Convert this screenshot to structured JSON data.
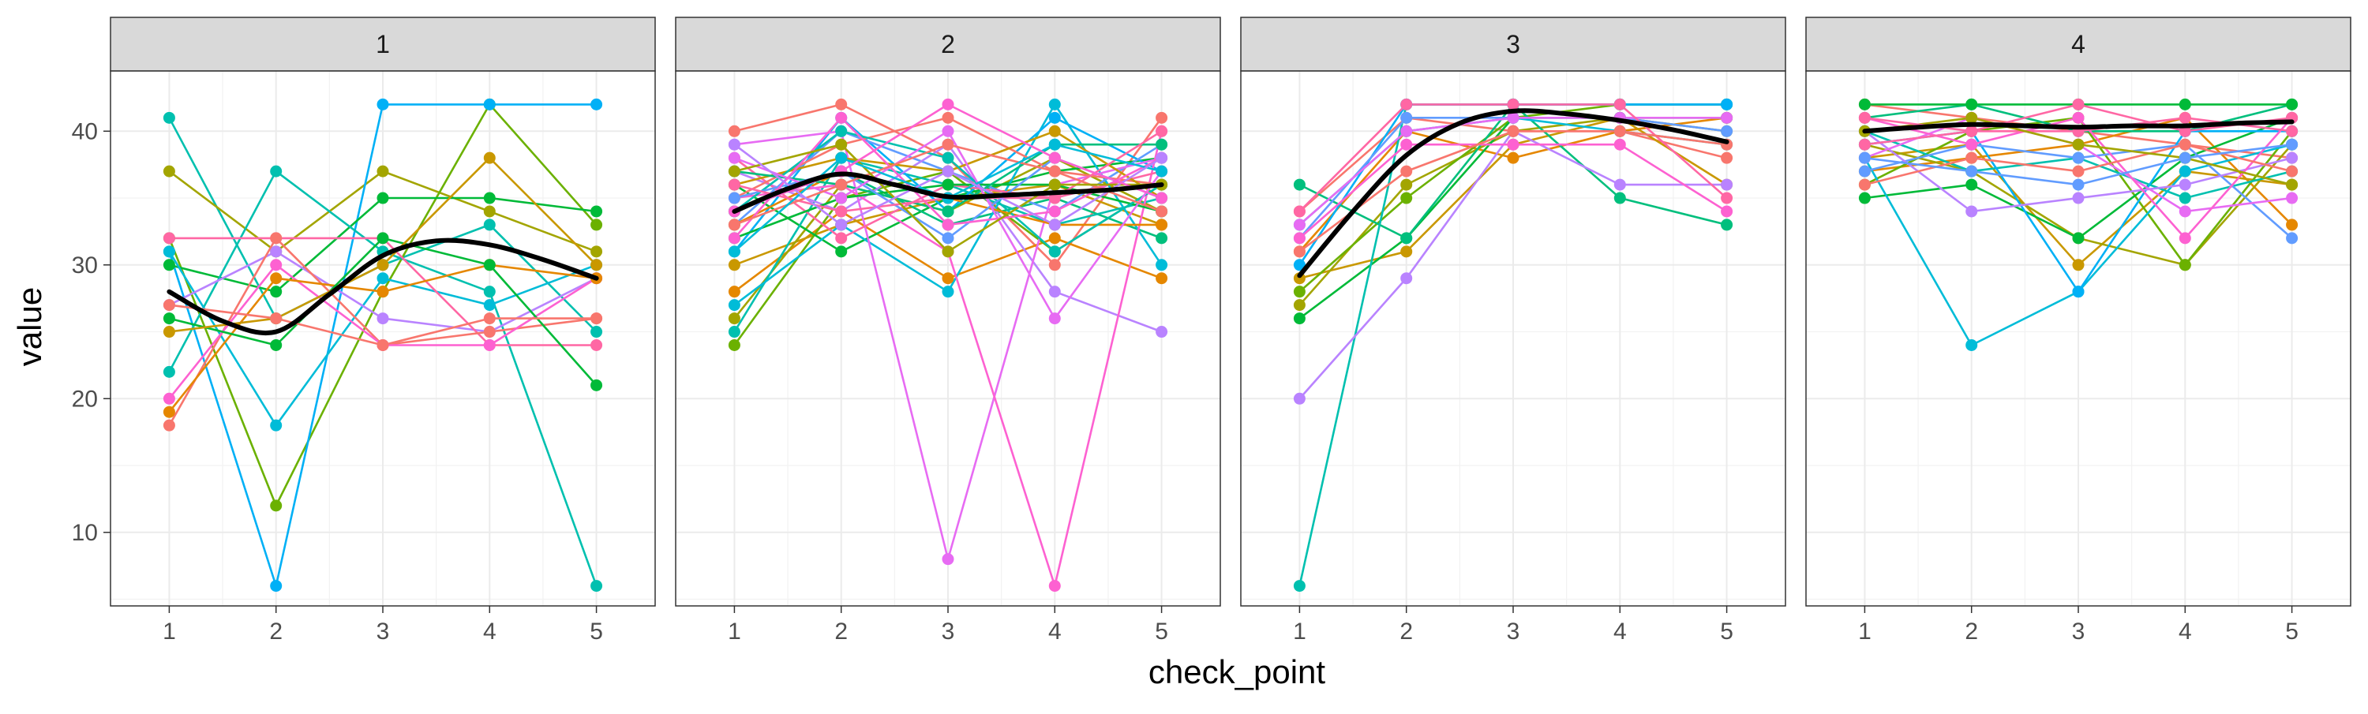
{
  "chart_data": {
    "type": "line",
    "xlabel": "check_point",
    "ylabel": "value",
    "x_ticks": [
      1,
      2,
      3,
      4,
      5
    ],
    "y_ticks": [
      10,
      20,
      30,
      40
    ],
    "ylim": [
      4.5,
      44.5
    ],
    "xlim": [
      0.45,
      5.55
    ],
    "grid": true,
    "legend": "none",
    "smooth_color": "#000000",
    "palette": [
      "#F8766D",
      "#E58700",
      "#C99800",
      "#A3A500",
      "#6BB100",
      "#00BA38",
      "#00BF7D",
      "#00C0AF",
      "#00BCD8",
      "#00B0F6",
      "#619CFF",
      "#B983FF",
      "#E76BF3",
      "#FD61D1",
      "#FF67A4"
    ],
    "panels": [
      {
        "label": "1",
        "series": [
          {
            "color": "#00C0AF",
            "values": [
              41,
              26,
              30,
              33,
              25
            ]
          },
          {
            "color": "#A3A500",
            "values": [
              37,
              31,
              37,
              34,
              31
            ]
          },
          {
            "color": "#6BB100",
            "values": [
              32,
              12,
              28,
              42,
              33
            ]
          },
          {
            "color": "#00B0F6",
            "values": [
              31,
              6,
              42,
              42,
              42
            ]
          },
          {
            "color": "#00BA38",
            "values": [
              30,
              28,
              35,
              35,
              34
            ]
          },
          {
            "color": "#00C0AF",
            "values": [
              22,
              37,
              31,
              28,
              6
            ]
          },
          {
            "color": "#00BCD8",
            "values": [
              31,
              18,
              29,
              27,
              30
            ]
          },
          {
            "color": "#B983FF",
            "values": [
              27,
              31,
              26,
              25,
              29
            ]
          },
          {
            "color": "#FF67A4",
            "values": [
              32,
              32,
              32,
              24,
              24
            ]
          },
          {
            "color": "#F8766D",
            "values": [
              18,
              32,
              24,
              25,
              26
            ]
          },
          {
            "color": "#FD61D1",
            "values": [
              20,
              30,
              24,
              24,
              29
            ]
          },
          {
            "color": "#E58700",
            "values": [
              19,
              29,
              28,
              30,
              29
            ]
          },
          {
            "color": "#00BA38",
            "values": [
              26,
              24,
              32,
              30,
              21
            ]
          },
          {
            "color": "#C99800",
            "values": [
              25,
              26,
              30,
              38,
              30
            ]
          },
          {
            "color": "#F8766D",
            "values": [
              27,
              26,
              24,
              26,
              26
            ]
          }
        ],
        "smooth": [
          [
            1,
            28.0
          ],
          [
            1.5,
            25.8
          ],
          [
            2,
            25.0
          ],
          [
            2.5,
            27.8
          ],
          [
            3,
            30.7
          ],
          [
            3.5,
            31.8
          ],
          [
            4,
            31.5
          ],
          [
            4.5,
            30.4
          ],
          [
            5,
            29.0
          ]
        ]
      },
      {
        "label": "2",
        "series": [
          {
            "color": "#F8766D",
            "values": [
              40,
              42,
              38,
              30,
              41
            ]
          },
          {
            "color": "#E58700",
            "values": [
              28,
              34,
              29,
              32,
              29
            ]
          },
          {
            "color": "#C99800",
            "values": [
              30,
              33,
              35,
              36,
              33
            ]
          },
          {
            "color": "#A3A500",
            "values": [
              26,
              36,
              34,
              38,
              34
            ]
          },
          {
            "color": "#6BB100",
            "values": [
              24,
              35,
              37,
              31,
              36
            ]
          },
          {
            "color": "#00BA38",
            "values": [
              36,
              31,
              35,
              37,
              38
            ]
          },
          {
            "color": "#00BF7D",
            "values": [
              34,
              37,
              33,
              35,
              32
            ]
          },
          {
            "color": "#00C0AF",
            "values": [
              25,
              38,
              36,
              33,
              35
            ]
          },
          {
            "color": "#00BCD8",
            "values": [
              27,
              33,
              28,
              42,
              30
            ]
          },
          {
            "color": "#00B0F6",
            "values": [
              31,
              41,
              34,
              41,
              37
            ]
          },
          {
            "color": "#619CFF",
            "values": [
              33,
              40,
              37,
              34,
              39
            ]
          },
          {
            "color": "#B983FF",
            "values": [
              37,
              34,
              39,
              28,
              25
            ]
          },
          {
            "color": "#E76BF3",
            "values": [
              39,
              40,
              8,
              36,
              38
            ]
          },
          {
            "color": "#FD61D1",
            "values": [
              35,
              36,
              31,
              6,
              40
            ]
          },
          {
            "color": "#FF67A4",
            "values": [
              38,
              32,
              36,
              35,
              37
            ]
          },
          {
            "color": "#F8766D",
            "values": [
              35,
              39,
              41,
              37,
              36
            ]
          },
          {
            "color": "#E58700",
            "values": [
              33,
              37,
              35,
              33,
              33
            ]
          },
          {
            "color": "#C99800",
            "values": [
              36,
              38,
              37,
              40,
              35
            ]
          },
          {
            "color": "#00BA38",
            "values": [
              32,
              35,
              36,
              36,
              34
            ]
          },
          {
            "color": "#00BF7D",
            "values": [
              37,
              36,
              34,
              39,
              39
            ]
          },
          {
            "color": "#00C0AF",
            "values": [
              34,
              40,
              38,
              31,
              36
            ]
          },
          {
            "color": "#619CFF",
            "values": [
              35,
              37,
              32,
              38,
              35
            ]
          },
          {
            "color": "#E76BF3",
            "values": [
              38,
              35,
              40,
              26,
              37
            ]
          },
          {
            "color": "#FD61D1",
            "values": [
              32,
              41,
              33,
              34,
              38
            ]
          },
          {
            "color": "#FF67A4",
            "values": [
              36,
              34,
              35,
              35,
              40
            ]
          },
          {
            "color": "#F8766D",
            "values": [
              33,
              36,
              39,
              37,
              34
            ]
          },
          {
            "color": "#A3A500",
            "values": [
              37,
              39,
              31,
              36,
              36
            ]
          },
          {
            "color": "#00BCD8",
            "values": [
              31,
              38,
              35,
              39,
              37
            ]
          },
          {
            "color": "#B983FF",
            "values": [
              39,
              33,
              37,
              33,
              38
            ]
          },
          {
            "color": "#FD61D1",
            "values": [
              34,
              37,
              42,
              38,
              35
            ]
          }
        ],
        "smooth": [
          [
            1,
            34.0
          ],
          [
            1.5,
            35.7
          ],
          [
            2,
            36.8
          ],
          [
            2.5,
            36.0
          ],
          [
            3,
            35.1
          ],
          [
            3.5,
            35.2
          ],
          [
            4,
            35.4
          ],
          [
            4.5,
            35.6
          ],
          [
            5,
            36.0
          ]
        ]
      },
      {
        "label": "3",
        "series": [
          {
            "color": "#F8766D",
            "values": [
              34,
              41,
              40,
              40,
              38
            ]
          },
          {
            "color": "#E58700",
            "values": [
              31,
              40,
              38,
              40,
              41
            ]
          },
          {
            "color": "#C99800",
            "values": [
              29,
              31,
              39,
              41,
              36
            ]
          },
          {
            "color": "#A3A500",
            "values": [
              27,
              36,
              40,
              41,
              40
            ]
          },
          {
            "color": "#6BB100",
            "values": [
              28,
              35,
              41,
              42,
              42
            ]
          },
          {
            "color": "#00BA38",
            "values": [
              26,
              32,
              41,
              41,
              41
            ]
          },
          {
            "color": "#00BF7D",
            "values": [
              36,
              32,
              42,
              35,
              33
            ]
          },
          {
            "color": "#00C0AF",
            "values": [
              6,
              42,
              42,
              42,
              42
            ]
          },
          {
            "color": "#00BCD8",
            "values": [
              33,
              40,
              41,
              40,
              39
            ]
          },
          {
            "color": "#00B0F6",
            "values": [
              30,
              42,
              42,
              42,
              42
            ]
          },
          {
            "color": "#619CFF",
            "values": [
              32,
              41,
              41,
              41,
              40
            ]
          },
          {
            "color": "#B983FF",
            "values": [
              20,
              29,
              40,
              36,
              36
            ]
          },
          {
            "color": "#E76BF3",
            "values": [
              33,
              40,
              41,
              41,
              41
            ]
          },
          {
            "color": "#FD61D1",
            "values": [
              32,
              39,
              39,
              39,
              34
            ]
          },
          {
            "color": "#FF67A4",
            "values": [
              34,
              42,
              42,
              42,
              35
            ]
          },
          {
            "color": "#F8766D",
            "values": [
              31,
              37,
              40,
              40,
              39
            ]
          }
        ],
        "smooth": [
          [
            1,
            29.2
          ],
          [
            1.5,
            34.0
          ],
          [
            2,
            38.2
          ],
          [
            2.5,
            40.6
          ],
          [
            3,
            41.5
          ],
          [
            3.5,
            41.3
          ],
          [
            4,
            40.8
          ],
          [
            4.5,
            40.1
          ],
          [
            5,
            39.2
          ]
        ]
      },
      {
        "label": "4",
        "series": [
          {
            "color": "#F8766D",
            "values": [
              42,
              41,
              40,
              39,
              38
            ]
          },
          {
            "color": "#E58700",
            "values": [
              37,
              38,
              39,
              41,
              33
            ]
          },
          {
            "color": "#C99800",
            "values": [
              38,
              39,
              30,
              37,
              36
            ]
          },
          {
            "color": "#A3A500",
            "values": [
              39,
              37,
              32,
              30,
              39
            ]
          },
          {
            "color": "#6BB100",
            "values": [
              36,
              40,
              41,
              30,
              40
            ]
          },
          {
            "color": "#00BA38",
            "values": [
              35,
              36,
              32,
              38,
              41
            ]
          },
          {
            "color": "#00BF7D",
            "values": [
              41,
              42,
              40,
              40,
              42
            ]
          },
          {
            "color": "#00C0AF",
            "values": [
              40,
              37,
              38,
              35,
              37
            ]
          },
          {
            "color": "#00BCD8",
            "values": [
              38,
              24,
              28,
              37,
              39
            ]
          },
          {
            "color": "#00B0F6",
            "values": [
              39,
              40,
              28,
              40,
              40
            ]
          },
          {
            "color": "#619CFF",
            "values": [
              37,
              39,
              38,
              39,
              32
            ]
          },
          {
            "color": "#B983FF",
            "values": [
              40,
              34,
              35,
              36,
              38
            ]
          },
          {
            "color": "#E76BF3",
            "values": [
              38,
              41,
              39,
              34,
              35
            ]
          },
          {
            "color": "#FD61D1",
            "values": [
              41,
              39,
              41,
              32,
              41
            ]
          },
          {
            "color": "#FF67A4",
            "values": [
              39,
              40,
              40,
              41,
              40
            ]
          },
          {
            "color": "#F8766D",
            "values": [
              36,
              38,
              37,
              39,
              37
            ]
          },
          {
            "color": "#00BA38",
            "values": [
              42,
              42,
              42,
              42,
              42
            ]
          },
          {
            "color": "#A3A500",
            "values": [
              40,
              41,
              39,
              38,
              36
            ]
          },
          {
            "color": "#FF67A4",
            "values": [
              41,
              40,
              42,
              40,
              41
            ]
          },
          {
            "color": "#619CFF",
            "values": [
              38,
              37,
              36,
              38,
              39
            ]
          }
        ],
        "smooth": [
          [
            1,
            40.0
          ],
          [
            1.5,
            40.3
          ],
          [
            2,
            40.5
          ],
          [
            2.5,
            40.4
          ],
          [
            3,
            40.3
          ],
          [
            3.5,
            40.4
          ],
          [
            4,
            40.4
          ],
          [
            4.5,
            40.6
          ],
          [
            5,
            40.7
          ]
        ]
      }
    ]
  }
}
